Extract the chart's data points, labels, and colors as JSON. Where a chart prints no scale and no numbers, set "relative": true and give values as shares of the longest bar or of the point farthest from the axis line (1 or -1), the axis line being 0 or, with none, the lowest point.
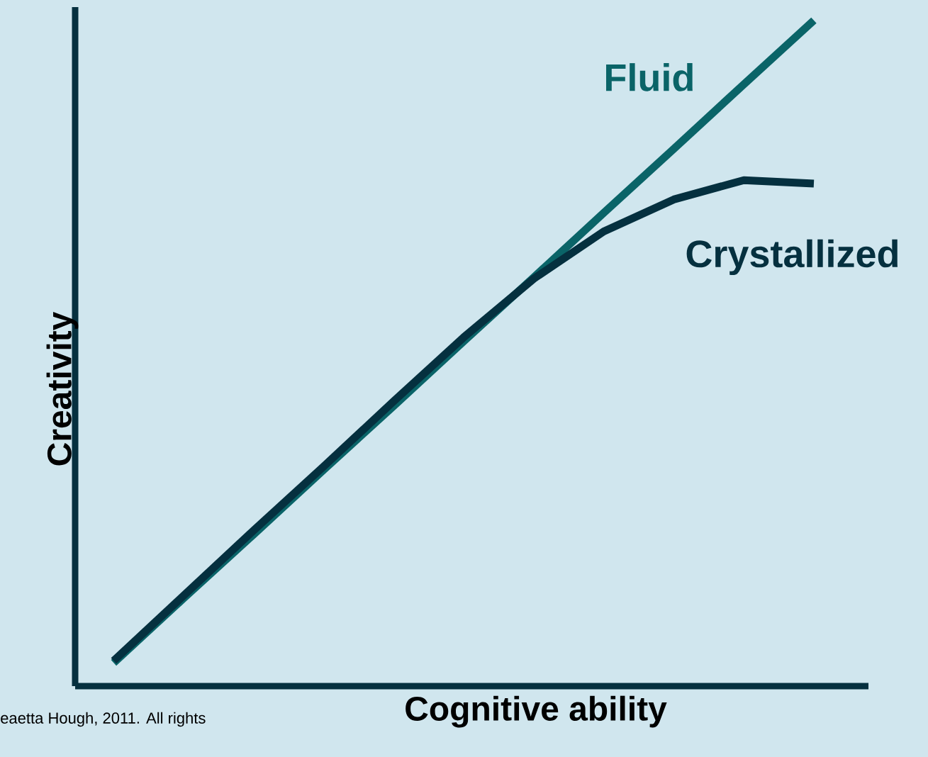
{
  "chart_data": {
    "type": "line",
    "relative": true,
    "xlabel": "Cognitive ability",
    "ylabel": "Creativity",
    "categories": [
      null,
      null,
      null,
      null,
      null,
      null,
      null,
      null,
      null,
      null,
      null
    ],
    "series": [
      {
        "name": "Fluid",
        "color": "#0a6468",
        "values": [
          0.035,
          0.132,
          0.228,
          0.325,
          0.421,
          0.518,
          0.614,
          0.711,
          0.807,
          0.904,
          1
        ]
      },
      {
        "name": "Crystallized",
        "color": "#05303f",
        "values": [
          0.038,
          0.136,
          0.234,
          0.33,
          0.428,
          0.524,
          0.612,
          0.683,
          0.731,
          0.76,
          0.755
        ]
      }
    ],
    "annotations": [
      "eaetta Hough, 2011.  All rights"
    ]
  }
}
